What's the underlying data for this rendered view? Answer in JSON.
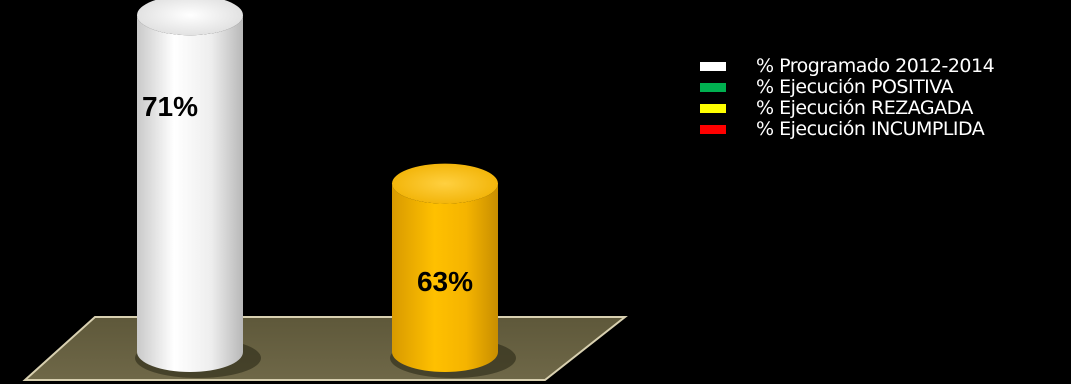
{
  "chart_data": {
    "type": "bar",
    "categories": [
      "",
      ""
    ],
    "series": [
      {
        "name": "% Programado 2012-2014",
        "color": "#ffffff",
        "values": [
          71,
          null
        ]
      },
      {
        "name": "% Ejecución POSITIVA",
        "color": "#00b050",
        "values": [
          null,
          null
        ]
      },
      {
        "name": "% Ejecución REZAGADA",
        "color": "#ffff00",
        "values": [
          null,
          63
        ]
      },
      {
        "name": "% Ejecución INCUMPLIDA",
        "color": "#ff0000",
        "values": [
          null,
          null
        ]
      }
    ],
    "bars": [
      {
        "value": 71,
        "label": "71%",
        "series": "% Programado 2012-2014",
        "color": "#ffffff"
      },
      {
        "value": 63,
        "label": "63%",
        "series": "% Ejecución REZAGADA",
        "color": "#ffc000"
      }
    ],
    "ylim": [
      55,
      75
    ],
    "legend_position": "top-right",
    "grid": false,
    "floor_color": "#6b6444"
  },
  "legend": {
    "items": [
      {
        "label": "% Programado 2012-2014",
        "color": "#ffffff"
      },
      {
        "label": "% Ejecución POSITIVA",
        "color": "#00b050"
      },
      {
        "label": "% Ejecución REZAGADA",
        "color": "#ffff00"
      },
      {
        "label": "% Ejecución INCUMPLIDA",
        "color": "#ff0000"
      }
    ]
  }
}
